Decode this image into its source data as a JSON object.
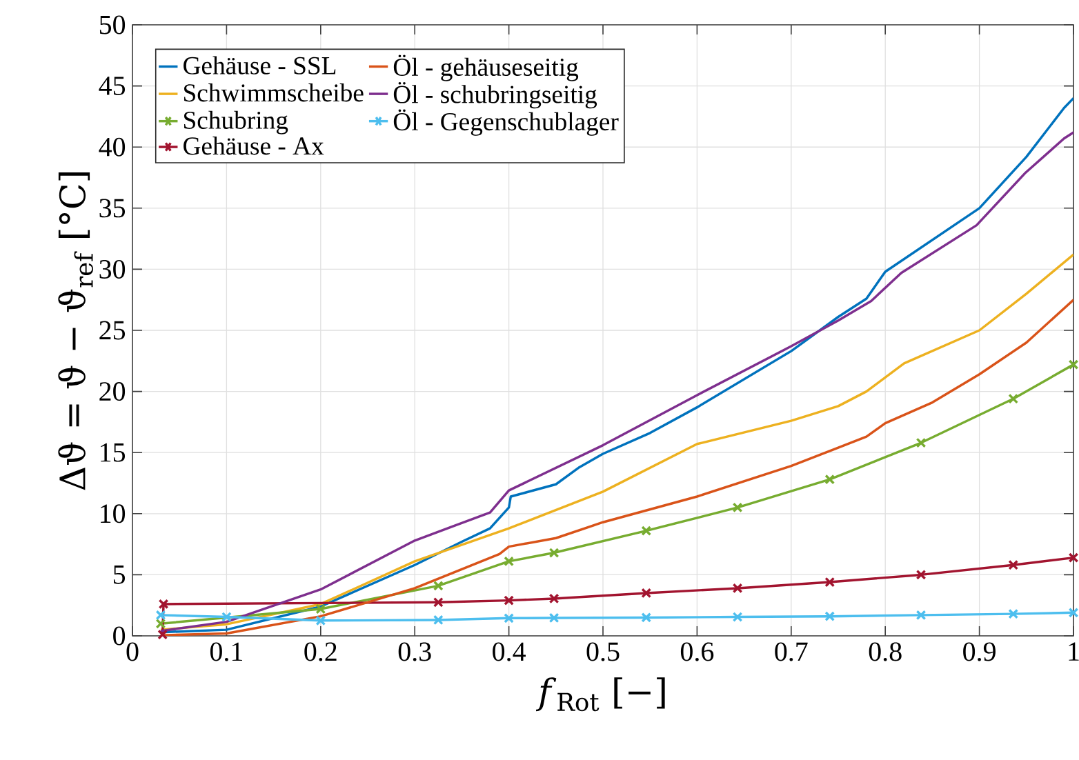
{
  "chart_data": {
    "type": "line",
    "xlabel": "*f*$_{Rot}$ [−]",
    "ylabel": "Δϑ = ϑ − ϑ$_{ref}$ [°C]",
    "xlim": [
      0,
      1
    ],
    "ylim": [
      0,
      50
    ],
    "xticks": [
      0,
      0.1,
      0.2,
      0.3,
      0.4,
      0.5,
      0.6,
      0.7,
      0.8,
      0.9,
      1
    ],
    "yticks": [
      0,
      5,
      10,
      15,
      20,
      25,
      30,
      35,
      40,
      45,
      50
    ],
    "grid": true,
    "legend": "top left",
    "series": [
      {
        "name": "Gehäuse - SSL",
        "color": "#0072bd",
        "marker": "none",
        "x": [
          0.03,
          0.1,
          0.2,
          0.3,
          0.35,
          0.38,
          0.4,
          0.402,
          0.45,
          0.475,
          0.5,
          0.55,
          0.6,
          0.65,
          0.7,
          0.75,
          0.78,
          0.8,
          0.9,
          0.95,
          0.99,
          1.0
        ],
        "values": [
          0.3,
          0.5,
          2.4,
          5.8,
          7.7,
          8.8,
          10.5,
          11.4,
          12.4,
          13.8,
          14.9,
          16.6,
          18.7,
          21.0,
          23.3,
          26.1,
          27.6,
          29.8,
          35.0,
          39.2,
          43.2,
          44.0
        ]
      },
      {
        "name": "Schwimmscheibe",
        "color": "#edb120",
        "marker": "none",
        "x": [
          0.03,
          0.1,
          0.2,
          0.3,
          0.4,
          0.5,
          0.6,
          0.7,
          0.75,
          0.78,
          0.82,
          0.9,
          0.95,
          1.0
        ],
        "values": [
          0.5,
          0.95,
          2.6,
          6.1,
          8.8,
          11.8,
          15.7,
          17.6,
          18.8,
          20.0,
          22.3,
          25.0,
          28.0,
          31.2
        ]
      },
      {
        "name": "Schubring",
        "color": "#77ac30",
        "marker": "cross",
        "x": [
          0.03,
          0.2,
          0.325,
          0.4,
          0.448,
          0.546,
          0.643,
          0.741,
          0.838,
          0.936,
          1.0
        ],
        "values": [
          1.0,
          2.2,
          4.1,
          6.1,
          6.8,
          8.6,
          10.5,
          12.8,
          15.8,
          19.4,
          22.2
        ]
      },
      {
        "name": "Gehäuse - Ax",
        "color": "#a2142f",
        "marker": "cross",
        "x": [
          0.032,
          0.033,
          0.325,
          0.4,
          0.448,
          0.546,
          0.643,
          0.741,
          0.838,
          0.936,
          1.0
        ],
        "values": [
          0.1,
          2.6,
          2.75,
          2.9,
          3.05,
          3.5,
          3.9,
          4.4,
          5.0,
          5.8,
          6.4
        ]
      },
      {
        "name": "Öl - gehäuseseitig",
        "color": "#d95319",
        "marker": "none",
        "x": [
          0.03,
          0.1,
          0.2,
          0.3,
          0.39,
          0.4,
          0.45,
          0.5,
          0.6,
          0.7,
          0.75,
          0.78,
          0.8,
          0.85,
          0.9,
          0.95,
          1.0
        ],
        "values": [
          0.05,
          0.2,
          1.6,
          3.9,
          6.7,
          7.3,
          8.0,
          9.3,
          11.4,
          13.9,
          15.4,
          16.3,
          17.4,
          19.1,
          21.4,
          24.0,
          27.5
        ]
      },
      {
        "name": "Öl - schubringseitig",
        "color": "#7e2f8e",
        "marker": "none",
        "x": [
          0.03,
          0.1,
          0.2,
          0.3,
          0.38,
          0.4,
          0.5,
          0.6,
          0.7,
          0.75,
          0.785,
          0.817,
          0.897,
          0.949,
          0.99,
          1.0
        ],
        "values": [
          0.4,
          1.15,
          3.8,
          7.8,
          10.1,
          11.9,
          15.6,
          19.7,
          23.7,
          25.8,
          27.4,
          29.7,
          33.6,
          37.9,
          40.7,
          41.2
        ]
      },
      {
        "name": "Öl - Gegenschublager",
        "color": "#4dbeee",
        "marker": "cross",
        "x": [
          0.03,
          0.1,
          0.2,
          0.325,
          0.4,
          0.448,
          0.546,
          0.643,
          0.741,
          0.838,
          0.936,
          1.0
        ],
        "values": [
          1.7,
          1.55,
          1.25,
          1.3,
          1.45,
          1.47,
          1.5,
          1.55,
          1.6,
          1.7,
          1.8,
          1.9
        ]
      }
    ]
  }
}
